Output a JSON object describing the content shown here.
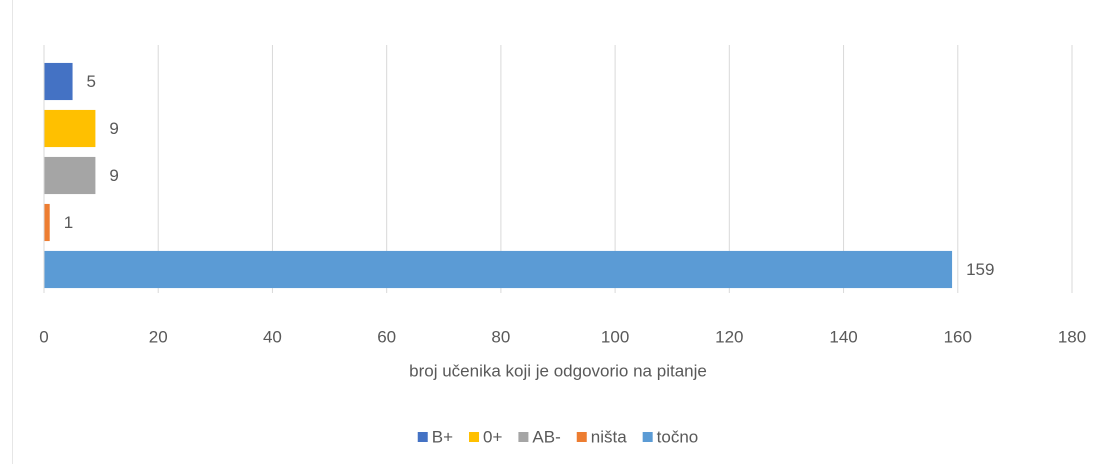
{
  "chart_data": {
    "type": "bar",
    "orientation": "horizontal",
    "xlabel": "broj učenika koji je odgovorio na pitanje",
    "categories": [
      null
    ],
    "series": [
      {
        "name": "B+",
        "color": "#4472c4",
        "values": [
          5
        ]
      },
      {
        "name": "0+",
        "color": "#ffc000",
        "values": [
          9
        ]
      },
      {
        "name": "AB-",
        "color": "#a5a5a5",
        "values": [
          9
        ]
      },
      {
        "name": "ništa",
        "color": "#ed7d31",
        "values": [
          1
        ]
      },
      {
        "name": "točno",
        "color": "#5b9bd5",
        "values": [
          159
        ]
      }
    ],
    "xlim": [
      0,
      180
    ],
    "xticks": [
      0,
      20,
      40,
      60,
      80,
      100,
      120,
      140,
      160,
      180
    ],
    "grid": true,
    "legend": "bottom"
  }
}
